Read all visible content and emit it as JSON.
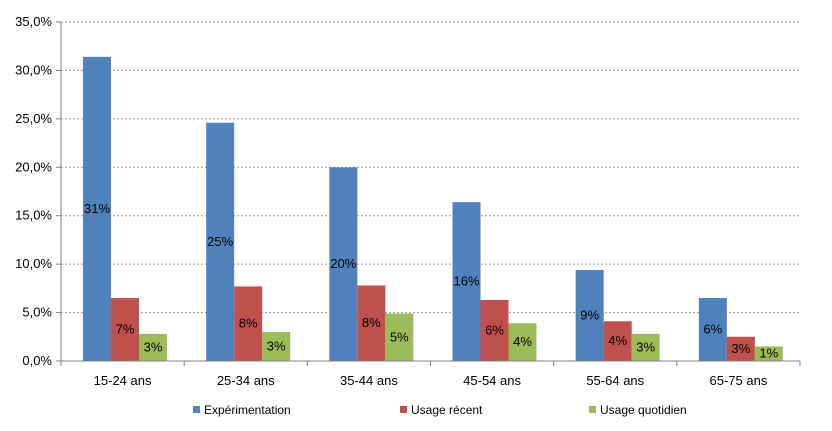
{
  "chart_data": {
    "type": "bar",
    "categories": [
      "15-24 ans",
      "25-34 ans",
      "35-44 ans",
      "45-54 ans",
      "55-64 ans",
      "65-75 ans"
    ],
    "series": [
      {
        "name": "Expérimentation",
        "color": "#4F81BD",
        "values": [
          31.4,
          24.6,
          20.0,
          16.4,
          9.4,
          6.5
        ],
        "labels": [
          "31%",
          "25%",
          "20%",
          "16%",
          "9%",
          "6%"
        ]
      },
      {
        "name": "Usage récent",
        "color": "#C0504D",
        "values": [
          6.5,
          7.7,
          7.8,
          6.3,
          4.1,
          2.5
        ],
        "labels": [
          "7%",
          "8%",
          "8%",
          "6%",
          "4%",
          "3%"
        ]
      },
      {
        "name": "Usage quotidien",
        "color": "#9BBB59",
        "values": [
          2.8,
          3.0,
          4.9,
          3.9,
          2.8,
          1.5
        ],
        "labels": [
          "3%",
          "3%",
          "5%",
          "4%",
          "3%",
          "1%"
        ]
      }
    ],
    "yticks": [
      "0,0%",
      "5,0%",
      "10,0%",
      "15,0%",
      "20,0%",
      "25,0%",
      "30,0%",
      "35,0%"
    ],
    "ylim": [
      0,
      35
    ],
    "grid": true,
    "legend_position": "bottom",
    "title": "",
    "xlabel": "",
    "ylabel": ""
  }
}
